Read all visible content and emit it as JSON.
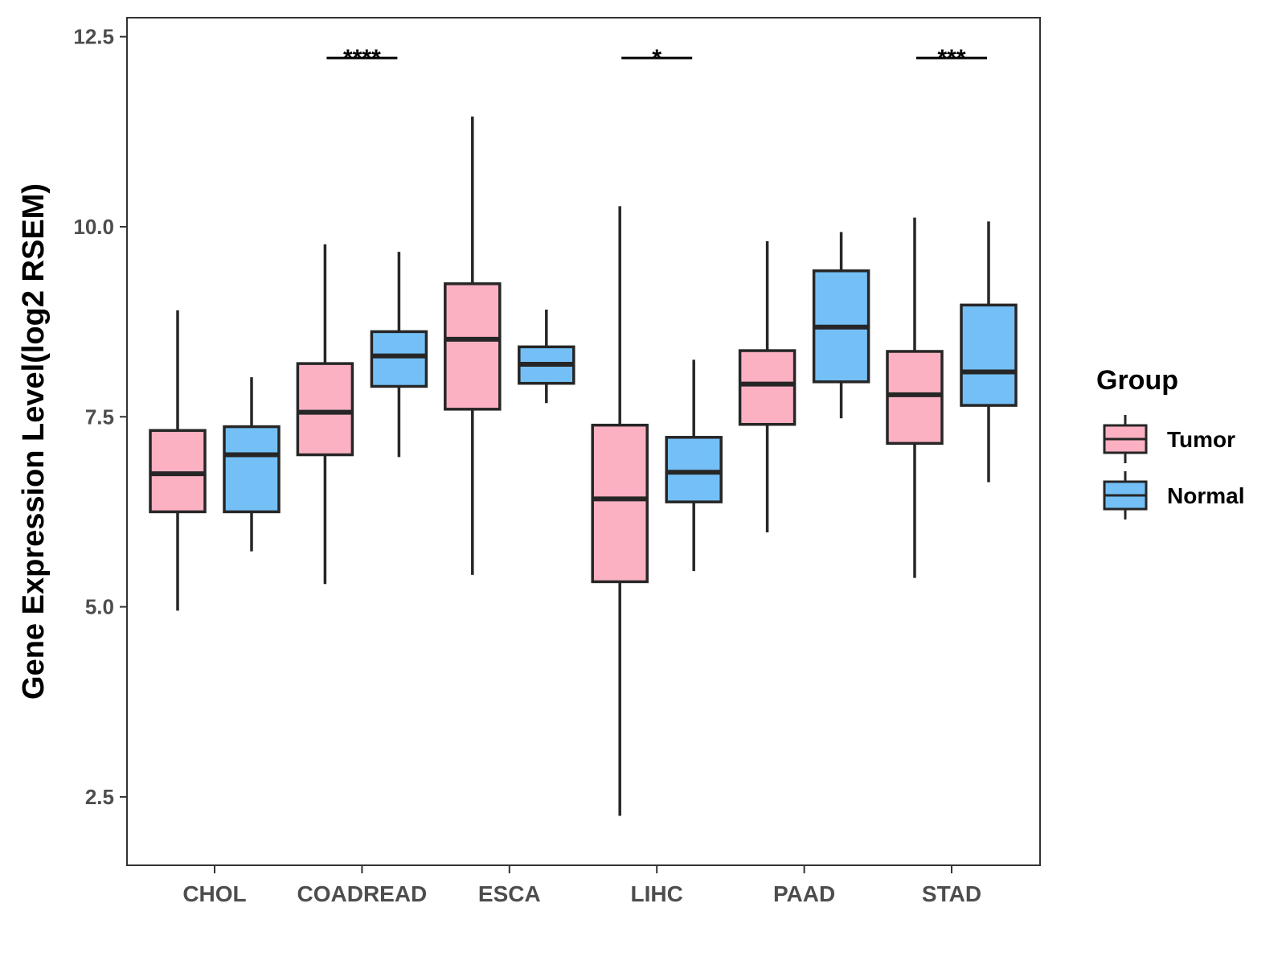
{
  "chart_data": {
    "type": "boxplot",
    "title": "",
    "xlabel": "",
    "ylabel": "Gene Expression Level(log2 RSEM)",
    "ylim": [
      1.6,
      12.75
    ],
    "yticks": [
      2.5,
      5.0,
      7.5,
      10.0,
      12.5
    ],
    "ytick_labels": [
      "2.5",
      "5.0",
      "7.5",
      "10.0",
      "12.5"
    ],
    "categories": [
      "CHOL",
      "COADREAD",
      "ESCA",
      "LIHC",
      "PAAD",
      "STAD"
    ],
    "legend": {
      "title": "Group",
      "placement": "right",
      "entries": [
        {
          "name": "Tumor",
          "color": "#FBB1C2"
        },
        {
          "name": "Normal",
          "color": "#74C0F6"
        }
      ]
    },
    "series": [
      {
        "name": "Tumor",
        "color": "#FBB1C2",
        "boxes": [
          {
            "whisker_low": 4.95,
            "q1": 6.25,
            "median": 6.75,
            "q3": 7.32,
            "whisker_high": 8.9
          },
          {
            "whisker_low": 5.3,
            "q1": 7.0,
            "median": 7.56,
            "q3": 8.2,
            "whisker_high": 9.77
          },
          {
            "whisker_low": 5.42,
            "q1": 7.6,
            "median": 8.52,
            "q3": 9.25,
            "whisker_high": 11.45
          },
          {
            "whisker_low": 2.25,
            "q1": 5.33,
            "median": 6.42,
            "q3": 7.39,
            "whisker_high": 10.27
          },
          {
            "whisker_low": 5.98,
            "q1": 7.4,
            "median": 7.93,
            "q3": 8.37,
            "whisker_high": 9.81
          },
          {
            "whisker_low": 5.38,
            "q1": 7.15,
            "median": 7.79,
            "q3": 8.36,
            "whisker_high": 10.12
          }
        ]
      },
      {
        "name": "Normal",
        "color": "#74C0F6",
        "boxes": [
          {
            "whisker_low": 5.73,
            "q1": 6.25,
            "median": 7.0,
            "q3": 7.37,
            "whisker_high": 8.02
          },
          {
            "whisker_low": 6.97,
            "q1": 7.9,
            "median": 8.3,
            "q3": 8.62,
            "whisker_high": 9.67
          },
          {
            "whisker_low": 7.68,
            "q1": 7.94,
            "median": 8.19,
            "q3": 8.42,
            "whisker_high": 8.91
          },
          {
            "whisker_low": 5.47,
            "q1": 6.38,
            "median": 6.77,
            "q3": 7.23,
            "whisker_high": 8.25
          },
          {
            "whisker_low": 7.48,
            "q1": 7.96,
            "median": 8.68,
            "q3": 9.42,
            "whisker_high": 9.93
          },
          {
            "whisker_low": 6.64,
            "q1": 7.65,
            "median": 8.09,
            "q3": 8.97,
            "whisker_high": 10.07
          }
        ]
      }
    ],
    "significance": [
      {
        "category": "COADREAD",
        "label": "****",
        "y": 12.22
      },
      {
        "category": "LIHC",
        "label": "*",
        "y": 12.22
      },
      {
        "category": "STAD",
        "label": "***",
        "y": 12.22
      }
    ]
  }
}
